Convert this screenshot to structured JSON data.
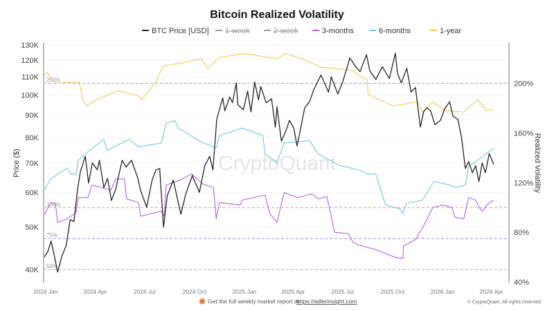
{
  "chart_data": {
    "type": "line",
    "title": "Bitcoin Realized Volatility",
    "legend": {
      "position": "top-center",
      "items": [
        {
          "label": "BTC Price [USD]",
          "color": "#222222",
          "visible": true
        },
        {
          "label": "1-week",
          "color": "#999999",
          "visible": false
        },
        {
          "label": "2-week",
          "color": "#999999",
          "visible": false
        },
        {
          "label": "3-months",
          "color": "#b45ee6",
          "visible": true
        },
        {
          "label": "6-months",
          "color": "#6cc6dd",
          "visible": true
        },
        {
          "label": "1-year",
          "color": "#f1c94f",
          "visible": true
        }
      ]
    },
    "x_axis": {
      "type": "date",
      "ticks": [
        "2024 Jan",
        "2024 Apr",
        "2024 Jul",
        "2024 Oct",
        "2025 Jan",
        "2025 Apr",
        "2025 Jul",
        "2025 Oct",
        "2026 Jan",
        "2026 Apr"
      ]
    },
    "y_left": {
      "label": "Price ($)",
      "scale": "log",
      "unit": "USD",
      "range": [
        37500,
        130000
      ],
      "ticks": [
        "40K",
        "50K",
        "60K",
        "70K",
        "80K",
        "90K",
        "100K",
        "110K",
        "120K",
        "130K"
      ]
    },
    "y_right": {
      "label": "Realized Volatility",
      "scale": "linear",
      "range": [
        40,
        231
      ],
      "ticks": [
        "40%",
        "80%",
        "120%",
        "160%",
        "200%"
      ]
    },
    "grid": true,
    "watermark": "CryptoQuant",
    "reference_lines": [
      {
        "label": "200%",
        "value": 200,
        "color": "#b98be8"
      },
      {
        "label": "100%",
        "value": 100,
        "color": "#e89a86"
      },
      {
        "label": "75%",
        "value": 75,
        "color": "#9c8cf0"
      },
      {
        "label": "50%",
        "value": 50,
        "color": "#bca6d8"
      }
    ],
    "series": [
      {
        "name": "BTC Price [USD]",
        "axis": "left",
        "unit": "K USD",
        "color": "#222222",
        "points": [
          [
            "2023-12-28",
            42.5
          ],
          [
            "2024-01-05",
            44.0
          ],
          [
            "2024-01-11",
            46.5
          ],
          [
            "2024-01-17",
            43.0
          ],
          [
            "2024-01-23",
            39.5
          ],
          [
            "2024-01-31",
            43.0
          ],
          [
            "2024-02-08",
            45.5
          ],
          [
            "2024-02-15",
            52.0
          ],
          [
            "2024-02-22",
            51.5
          ],
          [
            "2024-02-29",
            61.5
          ],
          [
            "2024-03-05",
            67.0
          ],
          [
            "2024-03-14",
            72.5
          ],
          [
            "2024-03-20",
            63.0
          ],
          [
            "2024-03-27",
            70.0
          ],
          [
            "2024-04-05",
            67.5
          ],
          [
            "2024-04-09",
            71.0
          ],
          [
            "2024-04-17",
            61.5
          ],
          [
            "2024-04-24",
            64.5
          ],
          [
            "2024-05-01",
            57.5
          ],
          [
            "2024-05-09",
            61.0
          ],
          [
            "2024-05-15",
            66.0
          ],
          [
            "2024-05-21",
            71.0
          ],
          [
            "2024-05-28",
            68.5
          ],
          [
            "2024-06-07",
            71.0
          ],
          [
            "2024-06-18",
            65.0
          ],
          [
            "2024-06-24",
            60.5
          ],
          [
            "2024-07-05",
            55.5
          ],
          [
            "2024-07-15",
            64.0
          ],
          [
            "2024-07-22",
            67.5
          ],
          [
            "2024-07-29",
            68.0
          ],
          [
            "2024-08-05",
            50.0
          ],
          [
            "2024-08-12",
            59.0
          ],
          [
            "2024-08-23",
            64.0
          ],
          [
            "2024-09-06",
            53.5
          ],
          [
            "2024-09-15",
            59.5
          ],
          [
            "2024-09-27",
            65.5
          ],
          [
            "2024-10-10",
            60.0
          ],
          [
            "2024-10-20",
            69.0
          ],
          [
            "2024-10-29",
            72.5
          ],
          [
            "2024-11-04",
            67.5
          ],
          [
            "2024-11-11",
            88.0
          ],
          [
            "2024-11-22",
            98.5
          ],
          [
            "2024-11-26",
            92.0
          ],
          [
            "2024-12-05",
            99.0
          ],
          [
            "2024-12-10",
            96.0
          ],
          [
            "2024-12-17",
            106.5
          ],
          [
            "2024-12-20",
            95.0
          ],
          [
            "2024-12-30",
            92.5
          ],
          [
            "2025-01-07",
            102.0
          ],
          [
            "2025-01-13",
            91.5
          ],
          [
            "2025-01-20",
            107.0
          ],
          [
            "2025-01-27",
            97.5
          ],
          [
            "2025-01-31",
            104.5
          ],
          [
            "2025-02-10",
            96.0
          ],
          [
            "2025-02-20",
            98.0
          ],
          [
            "2025-02-27",
            84.5
          ],
          [
            "2025-03-02",
            94.0
          ],
          [
            "2025-03-10",
            78.5
          ],
          [
            "2025-03-18",
            82.5
          ],
          [
            "2025-03-25",
            87.5
          ],
          [
            "2025-04-02",
            84.0
          ],
          [
            "2025-04-08",
            76.5
          ],
          [
            "2025-04-15",
            84.5
          ],
          [
            "2025-04-22",
            93.5
          ],
          [
            "2025-05-01",
            96.5
          ],
          [
            "2025-05-09",
            103.0
          ],
          [
            "2025-05-22",
            111.0
          ],
          [
            "2025-06-05",
            101.5
          ],
          [
            "2025-06-10",
            110.0
          ],
          [
            "2025-06-22",
            100.5
          ],
          [
            "2025-07-01",
            107.0
          ],
          [
            "2025-07-11",
            117.5
          ],
          [
            "2025-07-14",
            121.5
          ],
          [
            "2025-07-25",
            116.0
          ],
          [
            "2025-08-02",
            113.0
          ],
          [
            "2025-08-14",
            123.5
          ],
          [
            "2025-08-20",
            113.5
          ],
          [
            "2025-08-31",
            108.5
          ],
          [
            "2025-09-12",
            116.0
          ],
          [
            "2025-09-25",
            109.0
          ],
          [
            "2025-10-06",
            124.5
          ],
          [
            "2025-10-10",
            112.0
          ],
          [
            "2025-10-17",
            106.5
          ],
          [
            "2025-10-27",
            115.0
          ],
          [
            "2025-11-04",
            101.5
          ],
          [
            "2025-11-12",
            104.0
          ],
          [
            "2025-11-21",
            84.5
          ],
          [
            "2025-11-27",
            91.5
          ],
          [
            "2025-12-03",
            93.5
          ],
          [
            "2025-12-10",
            92.0
          ],
          [
            "2025-12-18",
            85.5
          ],
          [
            "2025-12-28",
            87.5
          ],
          [
            "2026-01-05",
            93.0
          ],
          [
            "2026-01-14",
            96.5
          ],
          [
            "2026-01-20",
            89.5
          ],
          [
            "2026-01-29",
            88.0
          ],
          [
            "2026-02-05",
            80.0
          ],
          [
            "2026-02-12",
            68.0
          ],
          [
            "2026-02-18",
            70.5
          ],
          [
            "2026-02-25",
            66.5
          ],
          [
            "2026-03-03",
            69.0
          ],
          [
            "2026-03-09",
            63.5
          ],
          [
            "2026-03-15",
            70.0
          ],
          [
            "2026-03-21",
            66.5
          ],
          [
            "2026-03-28",
            73.5
          ],
          [
            "2026-04-05",
            69.5
          ]
        ]
      },
      {
        "name": "3-months",
        "axis": "right",
        "unit": "%",
        "color": "#b45ee6",
        "points": [
          [
            "2023-12-28",
            93
          ],
          [
            "2024-01-10",
            104
          ],
          [
            "2024-01-19",
            103
          ],
          [
            "2024-01-23",
            88
          ],
          [
            "2024-02-10",
            91
          ],
          [
            "2024-02-26",
            96
          ],
          [
            "2024-03-01",
            108
          ],
          [
            "2024-03-19",
            108
          ],
          [
            "2024-03-26",
            118
          ],
          [
            "2024-04-13",
            116
          ],
          [
            "2024-04-30",
            114
          ],
          [
            "2024-05-09",
            123
          ],
          [
            "2024-05-25",
            123
          ],
          [
            "2024-05-29",
            107
          ],
          [
            "2024-06-20",
            104
          ],
          [
            "2024-06-24",
            93
          ],
          [
            "2024-08-01",
            97
          ],
          [
            "2024-08-06",
            93
          ],
          [
            "2024-08-10",
            118
          ],
          [
            "2024-09-04",
            122
          ],
          [
            "2024-09-26",
            127
          ],
          [
            "2024-10-16",
            119
          ],
          [
            "2024-11-05",
            116
          ],
          [
            "2024-11-10",
            91
          ],
          [
            "2024-11-16",
            104
          ],
          [
            "2024-12-24",
            102
          ],
          [
            "2024-12-28",
            106
          ],
          [
            "2025-02-08",
            110
          ],
          [
            "2025-02-17",
            95
          ],
          [
            "2025-03-02",
            88
          ],
          [
            "2025-03-15",
            112
          ],
          [
            "2025-04-09",
            108
          ],
          [
            "2025-05-05",
            111
          ],
          [
            "2025-05-17",
            107
          ],
          [
            "2025-06-02",
            109
          ],
          [
            "2025-06-16",
            80
          ],
          [
            "2025-07-11",
            79
          ],
          [
            "2025-07-20",
            72
          ],
          [
            "2025-07-29",
            70
          ],
          [
            "2025-08-31",
            66
          ],
          [
            "2025-10-05",
            60
          ],
          [
            "2025-10-20",
            59
          ],
          [
            "2025-10-21",
            69
          ],
          [
            "2025-11-12",
            74
          ],
          [
            "2025-11-28",
            86
          ],
          [
            "2025-12-14",
            100
          ],
          [
            "2026-01-02",
            102
          ],
          [
            "2026-01-18",
            100
          ],
          [
            "2026-01-24",
            92
          ],
          [
            "2026-02-09",
            91
          ],
          [
            "2026-02-18",
            108
          ],
          [
            "2026-03-03",
            106
          ],
          [
            "2026-03-09",
            100
          ],
          [
            "2026-03-16",
            97
          ],
          [
            "2026-03-23",
            102
          ],
          [
            "2026-04-05",
            106
          ]
        ]
      },
      {
        "name": "6-months",
        "axis": "right",
        "unit": "%",
        "color": "#6cc6dd",
        "points": [
          [
            "2023-12-28",
            113
          ],
          [
            "2024-01-10",
            123
          ],
          [
            "2024-02-10",
            132
          ],
          [
            "2024-02-16",
            127
          ],
          [
            "2024-02-26",
            127
          ],
          [
            "2024-03-01",
            138
          ],
          [
            "2024-03-19",
            145
          ],
          [
            "2024-04-17",
            155
          ],
          [
            "2024-04-23",
            146
          ],
          [
            "2024-06-03",
            155
          ],
          [
            "2024-06-20",
            149
          ],
          [
            "2024-08-01",
            152
          ],
          [
            "2024-08-10",
            168
          ],
          [
            "2024-08-26",
            170
          ],
          [
            "2024-09-01",
            164
          ],
          [
            "2024-10-13",
            153
          ],
          [
            "2024-11-10",
            148
          ],
          [
            "2024-11-16",
            158
          ],
          [
            "2024-12-28",
            164
          ],
          [
            "2025-02-04",
            158
          ],
          [
            "2025-02-08",
            143
          ],
          [
            "2025-03-02",
            136
          ],
          [
            "2025-03-15",
            152
          ],
          [
            "2025-05-01",
            154
          ],
          [
            "2025-05-17",
            143
          ],
          [
            "2025-06-25",
            134
          ],
          [
            "2025-08-02",
            130
          ],
          [
            "2025-08-15",
            127
          ],
          [
            "2025-08-31",
            127
          ],
          [
            "2025-09-18",
            102
          ],
          [
            "2025-10-14",
            99
          ],
          [
            "2025-10-20",
            95
          ],
          [
            "2025-10-26",
            103
          ],
          [
            "2025-11-25",
            106
          ],
          [
            "2025-12-16",
            121
          ],
          [
            "2026-01-15",
            118
          ],
          [
            "2026-01-24",
            116
          ],
          [
            "2026-02-12",
            118
          ],
          [
            "2026-02-18",
            133
          ],
          [
            "2026-03-16",
            141
          ],
          [
            "2026-04-05",
            148
          ]
        ]
      },
      {
        "name": "1-year",
        "axis": "right",
        "unit": "%",
        "color": "#f1c94f",
        "points": [
          [
            "2023-12-28",
            206
          ],
          [
            "2024-01-04",
            209
          ],
          [
            "2024-01-12",
            203
          ],
          [
            "2024-01-25",
            200
          ],
          [
            "2024-02-13",
            201
          ],
          [
            "2024-03-03",
            201
          ],
          [
            "2024-03-10",
            186
          ],
          [
            "2024-03-16",
            182
          ],
          [
            "2024-04-04",
            187
          ],
          [
            "2024-05-13",
            194
          ],
          [
            "2024-06-20",
            190
          ],
          [
            "2024-06-26",
            187
          ],
          [
            "2024-07-22",
            201
          ],
          [
            "2024-08-04",
            214
          ],
          [
            "2024-09-04",
            216
          ],
          [
            "2024-10-13",
            220
          ],
          [
            "2024-10-25",
            212
          ],
          [
            "2024-11-16",
            221
          ],
          [
            "2025-01-01",
            224
          ],
          [
            "2025-03-02",
            220
          ],
          [
            "2025-03-18",
            224
          ],
          [
            "2025-04-22",
            219
          ],
          [
            "2025-05-21",
            213
          ],
          [
            "2025-07-11",
            211
          ],
          [
            "2025-07-20",
            210
          ],
          [
            "2025-08-02",
            206
          ],
          [
            "2025-08-15",
            203
          ],
          [
            "2025-08-17",
            191
          ],
          [
            "2025-10-01",
            182
          ],
          [
            "2025-11-16",
            185
          ],
          [
            "2025-11-25",
            177
          ],
          [
            "2025-12-14",
            185
          ],
          [
            "2026-01-06",
            178
          ],
          [
            "2026-02-09",
            177
          ],
          [
            "2026-03-07",
            187
          ],
          [
            "2026-03-23",
            178
          ],
          [
            "2026-04-05",
            179
          ]
        ]
      }
    ]
  },
  "footer": {
    "text": "Get the full weekly market report at",
    "link": "https://adlerinsight.com",
    "copyright": "© CryptoQuant. All rights reserved"
  }
}
